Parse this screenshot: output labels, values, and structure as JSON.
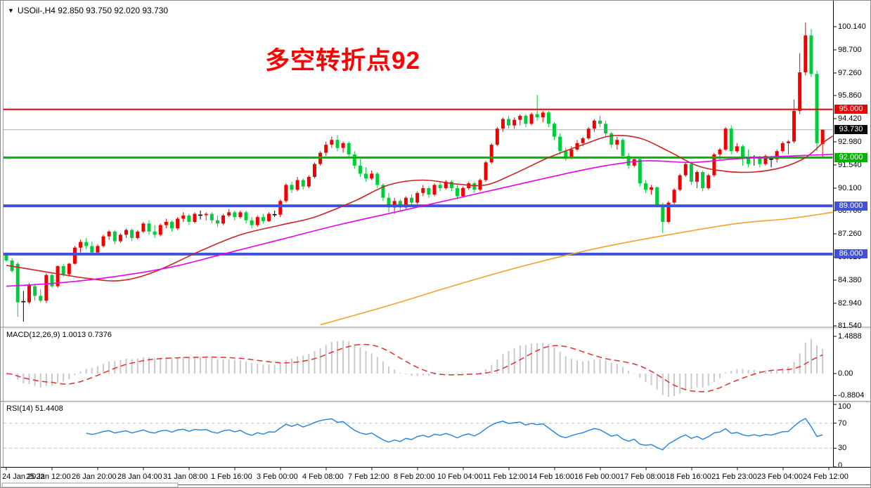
{
  "window": {
    "title": "USOil-,H4 92.850 93.750 92.020 93.730"
  },
  "annotation": {
    "text": "多空转折点92",
    "color": "#ff0000"
  },
  "indicators": {
    "macd_label": "MACD(12,26,9) 1.0013 0.7376",
    "rsi_label": "RSI(14) 51.4408"
  },
  "chart_data": {
    "type": "candlestick",
    "symbol": "USOil-",
    "timeframe": "H4",
    "title_ohlc": {
      "open": 92.85,
      "high": 93.75,
      "low": 92.02,
      "close": 93.73
    },
    "price_ticks": [
      100.14,
      98.7,
      97.26,
      95.86,
      94.42,
      92.98,
      91.54,
      90.1,
      88.7,
      87.26,
      85.82,
      84.38,
      82.94,
      81.54
    ],
    "levels": [
      {
        "price": 95.0,
        "label": "95.000",
        "color": "#f20000",
        "width": 2
      },
      {
        "price": 92.0,
        "label": "92.000",
        "color": "#00b400",
        "width": 3
      },
      {
        "price": 89.0,
        "label": "89.000",
        "color": "#4052dd",
        "width": 4
      },
      {
        "price": 86.0,
        "label": "86.000",
        "color": "#4052dd",
        "width": 4
      }
    ],
    "bid": {
      "price": 93.73,
      "label": "93.730",
      "line_color": "#ababab",
      "badge_bg": "#000000"
    },
    "time_labels": [
      "24 Jan 2022",
      "25 Jan 12:00",
      "26 Jan 20:00",
      "28 Jan 04:00",
      "31 Jan 08:00",
      "1 Feb 16:00",
      "3 Feb 00:00",
      "4 Feb 08:00",
      "7 Feb 12:00",
      "8 Feb 20:00",
      "10 Feb 04:00",
      "11 Feb 12:00",
      "14 Feb 16:00",
      "16 Feb 00:00",
      "17 Feb 08:00",
      "18 Feb 16:00",
      "21 Feb 23:00",
      "23 Feb 04:00",
      "24 Feb 12:00"
    ],
    "candle_colors": {
      "up": "#f20000",
      "down": "#00cc3c",
      "doji": "#000000"
    },
    "ohlc": [
      [
        85.95,
        86.1,
        85.5,
        85.6
      ],
      [
        85.6,
        85.75,
        84.85,
        84.95
      ],
      [
        85.4,
        85.5,
        82.1,
        83.0
      ],
      [
        83.05,
        83.7,
        81.8,
        83.04
      ],
      [
        83.0,
        84.2,
        82.9,
        84.1
      ],
      [
        84.0,
        84.15,
        83.1,
        83.4
      ],
      [
        83.4,
        83.8,
        83.0,
        83.1
      ],
      [
        83.1,
        84.8,
        82.95,
        84.7
      ],
      [
        84.7,
        84.85,
        83.9,
        84.0
      ],
      [
        84.0,
        85.3,
        83.9,
        85.25
      ],
      [
        85.25,
        85.4,
        84.6,
        84.75
      ],
      [
        84.75,
        85.45,
        84.6,
        85.4
      ],
      [
        85.4,
        86.5,
        85.35,
        86.4
      ],
      [
        86.4,
        86.9,
        86.1,
        86.75
      ],
      [
        86.75,
        87.0,
        86.3,
        86.5
      ],
      [
        86.5,
        86.8,
        85.9,
        86.1
      ],
      [
        86.1,
        86.6,
        86.0,
        86.5
      ],
      [
        86.5,
        87.2,
        86.4,
        87.1
      ],
      [
        87.1,
        87.5,
        86.9,
        87.4
      ],
      [
        87.4,
        87.5,
        86.6,
        86.8
      ],
      [
        86.8,
        87.3,
        86.7,
        87.2
      ],
      [
        87.2,
        87.6,
        87.0,
        87.5
      ],
      [
        87.5,
        87.6,
        86.8,
        87.0
      ],
      [
        87.0,
        87.5,
        86.9,
        87.4
      ],
      [
        87.4,
        88.0,
        87.3,
        87.9
      ],
      [
        87.9,
        88.1,
        87.2,
        87.4
      ],
      [
        87.4,
        87.8,
        87.0,
        87.2
      ],
      [
        87.2,
        87.9,
        87.1,
        87.8
      ],
      [
        87.8,
        88.2,
        87.6,
        88.0
      ],
      [
        88.0,
        88.1,
        87.4,
        87.6
      ],
      [
        87.6,
        88.3,
        87.5,
        88.2
      ],
      [
        88.2,
        88.6,
        88.0,
        88.4
      ],
      [
        88.4,
        88.5,
        87.8,
        88.0
      ],
      [
        88.0,
        88.6,
        87.9,
        88.5
      ],
      [
        88.4,
        88.7,
        88.15,
        88.42
      ],
      [
        88.42,
        88.6,
        88.1,
        88.5
      ],
      [
        88.5,
        88.6,
        87.9,
        88.1
      ],
      [
        88.1,
        88.4,
        87.7,
        87.9
      ],
      [
        87.9,
        88.5,
        87.8,
        88.4
      ],
      [
        88.4,
        88.8,
        88.3,
        88.6
      ],
      [
        88.6,
        88.7,
        88.1,
        88.3
      ],
      [
        88.3,
        88.7,
        88.2,
        88.6
      ],
      [
        88.6,
        88.7,
        87.9,
        88.1
      ],
      [
        88.1,
        88.3,
        87.6,
        87.8
      ],
      [
        87.8,
        88.4,
        87.7,
        88.3
      ],
      [
        88.3,
        88.5,
        87.9,
        88.05
      ],
      [
        88.05,
        88.6,
        88.0,
        88.5
      ],
      [
        88.5,
        88.7,
        88.3,
        88.45
      ],
      [
        88.45,
        89.4,
        88.3,
        89.3
      ],
      [
        89.3,
        90.4,
        89.2,
        90.3
      ],
      [
        90.3,
        90.5,
        89.8,
        90.0
      ],
      [
        90.0,
        90.8,
        89.9,
        90.6
      ],
      [
        90.6,
        90.7,
        90.0,
        90.2
      ],
      [
        90.2,
        90.9,
        90.1,
        90.8
      ],
      [
        90.8,
        91.7,
        90.7,
        91.6
      ],
      [
        91.6,
        92.4,
        91.5,
        92.3
      ],
      [
        92.3,
        93.0,
        92.1,
        92.8
      ],
      [
        92.8,
        93.3,
        92.6,
        93.1
      ],
      [
        93.1,
        93.4,
        92.4,
        92.6
      ],
      [
        92.6,
        93.0,
        92.3,
        92.9
      ],
      [
        92.9,
        93.0,
        92.0,
        92.2
      ],
      [
        92.2,
        92.4,
        91.3,
        91.5
      ],
      [
        91.5,
        91.9,
        90.8,
        91.0
      ],
      [
        91.0,
        91.4,
        90.5,
        90.7
      ],
      [
        90.7,
        91.2,
        90.6,
        91.0
      ],
      [
        91.0,
        91.1,
        90.1,
        90.3
      ],
      [
        90.3,
        90.4,
        89.3,
        89.5
      ],
      [
        89.5,
        89.8,
        88.6,
        88.9
      ],
      [
        88.9,
        89.5,
        88.5,
        89.3
      ],
      [
        89.3,
        89.4,
        88.7,
        88.9
      ],
      [
        88.9,
        89.6,
        88.8,
        89.5
      ],
      [
        89.5,
        89.7,
        89.0,
        89.2
      ],
      [
        89.2,
        89.9,
        89.1,
        89.8
      ],
      [
        89.8,
        90.3,
        89.6,
        90.1
      ],
      [
        90.1,
        90.2,
        89.5,
        89.7
      ],
      [
        89.7,
        90.4,
        89.6,
        90.3
      ],
      [
        90.3,
        90.5,
        89.9,
        90.1
      ],
      [
        90.1,
        90.6,
        90.0,
        90.5
      ],
      [
        90.5,
        90.6,
        89.9,
        90.1
      ],
      [
        90.1,
        90.3,
        89.4,
        89.6
      ],
      [
        89.6,
        90.2,
        89.5,
        90.1
      ],
      [
        90.1,
        90.5,
        90.0,
        90.4
      ],
      [
        90.4,
        90.5,
        89.8,
        90.0
      ],
      [
        90.0,
        90.7,
        89.9,
        90.6
      ],
      [
        90.6,
        91.8,
        90.5,
        91.7
      ],
      [
        91.7,
        92.9,
        91.6,
        92.8
      ],
      [
        92.8,
        93.9,
        92.7,
        93.8
      ],
      [
        93.8,
        94.5,
        93.6,
        94.4
      ],
      [
        94.4,
        94.6,
        93.8,
        94.0
      ],
      [
        94.0,
        94.5,
        93.8,
        94.35
      ],
      [
        94.35,
        94.7,
        94.0,
        94.6
      ],
      [
        94.6,
        94.7,
        93.9,
        94.1
      ],
      [
        94.1,
        94.8,
        94.0,
        94.7
      ],
      [
        94.7,
        95.9,
        94.3,
        94.5
      ],
      [
        94.5,
        94.9,
        94.2,
        94.8
      ],
      [
        94.8,
        94.9,
        93.9,
        94.1
      ],
      [
        94.1,
        94.2,
        93.1,
        93.3
      ],
      [
        93.3,
        93.5,
        92.2,
        92.4
      ],
      [
        92.4,
        92.6,
        91.8,
        92.0
      ],
      [
        92.0,
        92.7,
        91.9,
        92.5
      ],
      [
        92.5,
        93.1,
        92.4,
        92.9
      ],
      [
        92.9,
        93.3,
        92.7,
        93.2
      ],
      [
        93.2,
        93.9,
        93.1,
        93.8
      ],
      [
        93.8,
        94.4,
        93.6,
        94.3
      ],
      [
        94.3,
        94.6,
        93.9,
        94.1
      ],
      [
        94.1,
        94.3,
        93.3,
        93.5
      ],
      [
        93.5,
        93.6,
        92.6,
        92.8
      ],
      [
        92.8,
        93.3,
        92.5,
        93.1
      ],
      [
        93.1,
        93.2,
        91.9,
        92.1
      ],
      [
        92.1,
        92.3,
        91.3,
        91.5
      ],
      [
        91.5,
        92.0,
        91.4,
        91.9
      ],
      [
        91.9,
        92.0,
        90.2,
        90.4
      ],
      [
        90.4,
        90.6,
        89.8,
        90.0
      ],
      [
        90.0,
        90.3,
        89.7,
        90.15
      ],
      [
        90.15,
        90.2,
        88.9,
        89.0
      ],
      [
        89.0,
        89.2,
        87.3,
        88.0
      ],
      [
        88.0,
        89.3,
        87.9,
        89.2
      ],
      [
        89.2,
        90.1,
        89.1,
        90.0
      ],
      [
        90.0,
        91.0,
        89.9,
        90.9
      ],
      [
        90.9,
        91.7,
        90.8,
        91.6
      ],
      [
        91.6,
        91.7,
        90.3,
        90.5
      ],
      [
        90.5,
        91.2,
        90.1,
        91.1
      ],
      [
        91.1,
        91.2,
        89.9,
        90.1
      ],
      [
        90.1,
        91.0,
        90.0,
        90.9
      ],
      [
        90.9,
        92.3,
        90.8,
        92.2
      ],
      [
        92.2,
        92.6,
        91.9,
        92.5
      ],
      [
        92.5,
        93.9,
        92.4,
        93.8
      ],
      [
        93.8,
        94.0,
        92.2,
        92.4
      ],
      [
        92.4,
        92.9,
        92.3,
        92.7
      ],
      [
        92.7,
        92.8,
        91.5,
        92.0
      ],
      [
        92.0,
        92.5,
        91.4,
        91.6
      ],
      [
        91.98,
        92.15,
        91.5,
        92.0
      ],
      [
        92.0,
        92.1,
        91.4,
        91.6
      ],
      [
        91.6,
        92.2,
        91.5,
        92.1
      ],
      [
        91.89,
        92.1,
        91.4,
        91.9
      ],
      [
        91.9,
        92.5,
        91.7,
        92.4
      ],
      [
        92.4,
        93.0,
        92.3,
        92.9
      ],
      [
        92.9,
        93.1,
        92.2,
        93.0
      ],
      [
        93.0,
        95.6,
        92.9,
        94.9
      ],
      [
        94.9,
        98.5,
        94.7,
        97.3
      ],
      [
        97.3,
        100.4,
        97.1,
        99.6
      ],
      [
        99.6,
        100.0,
        97.0,
        97.2
      ],
      [
        97.2,
        97.4,
        92.4,
        92.9
      ],
      [
        92.85,
        93.75,
        92.02,
        93.73
      ]
    ],
    "ma": [
      {
        "name": "ma-fast-red",
        "color": "#cc2222",
        "points": [
          [
            0,
            85.3
          ],
          [
            6,
            84.95
          ],
          [
            14,
            84.5
          ],
          [
            20,
            84.35
          ],
          [
            26,
            84.9
          ],
          [
            34,
            86.2
          ],
          [
            41,
            87.2
          ],
          [
            48,
            87.8
          ],
          [
            54,
            88.3
          ],
          [
            61,
            89.3
          ],
          [
            67,
            90.3
          ],
          [
            73,
            90.6
          ],
          [
            79,
            90.35
          ],
          [
            84,
            90.3
          ],
          [
            89,
            91.0
          ],
          [
            95,
            92.0
          ],
          [
            101,
            92.8
          ],
          [
            106,
            93.35
          ],
          [
            111,
            93.2
          ],
          [
            116,
            92.4
          ],
          [
            121,
            91.5
          ],
          [
            126,
            91.15
          ],
          [
            131,
            91.1
          ],
          [
            136,
            91.4
          ],
          [
            140,
            92.0
          ],
          [
            143,
            92.9
          ],
          [
            144.8,
            93.35
          ]
        ]
      },
      {
        "name": "ma-mid-magenta",
        "color": "#e800e8",
        "points": [
          [
            0,
            84.0
          ],
          [
            9,
            84.2
          ],
          [
            19,
            84.6
          ],
          [
            29,
            85.2
          ],
          [
            38,
            86.0
          ],
          [
            48,
            86.9
          ],
          [
            58,
            87.8
          ],
          [
            68,
            88.6
          ],
          [
            78,
            89.4
          ],
          [
            88,
            90.2
          ],
          [
            98,
            91.0
          ],
          [
            105,
            91.5
          ],
          [
            112,
            91.8
          ],
          [
            120,
            91.7
          ],
          [
            127,
            91.9
          ],
          [
            134,
            92.05
          ],
          [
            144.8,
            92.2
          ]
        ]
      },
      {
        "name": "ma-long-orange",
        "color": "#efa42a",
        "points": [
          [
            55,
            81.6
          ],
          [
            67,
            82.8
          ],
          [
            79,
            84.1
          ],
          [
            91,
            85.3
          ],
          [
            104,
            86.4
          ],
          [
            116,
            87.2
          ],
          [
            128,
            87.9
          ],
          [
            137,
            88.2
          ],
          [
            144.8,
            88.6
          ]
        ]
      }
    ],
    "macd": {
      "params": "12,26,9",
      "value_main": 1.0013,
      "value_signal": 0.7376,
      "hist_color": "#c9c9c9",
      "signal_color": "#e03030",
      "axis_labels": [
        "1.4888",
        "0.00",
        "-0.8804"
      ],
      "axis_max": 1.4888,
      "axis_min": -0.8804
    },
    "rsi": {
      "period": 14,
      "value": 51.4408,
      "color": "#1f82e0",
      "axis_labels": [
        "100",
        "70",
        "30",
        "0"
      ],
      "levels": [
        70,
        30
      ],
      "level_color": "#bcbcbc"
    }
  }
}
